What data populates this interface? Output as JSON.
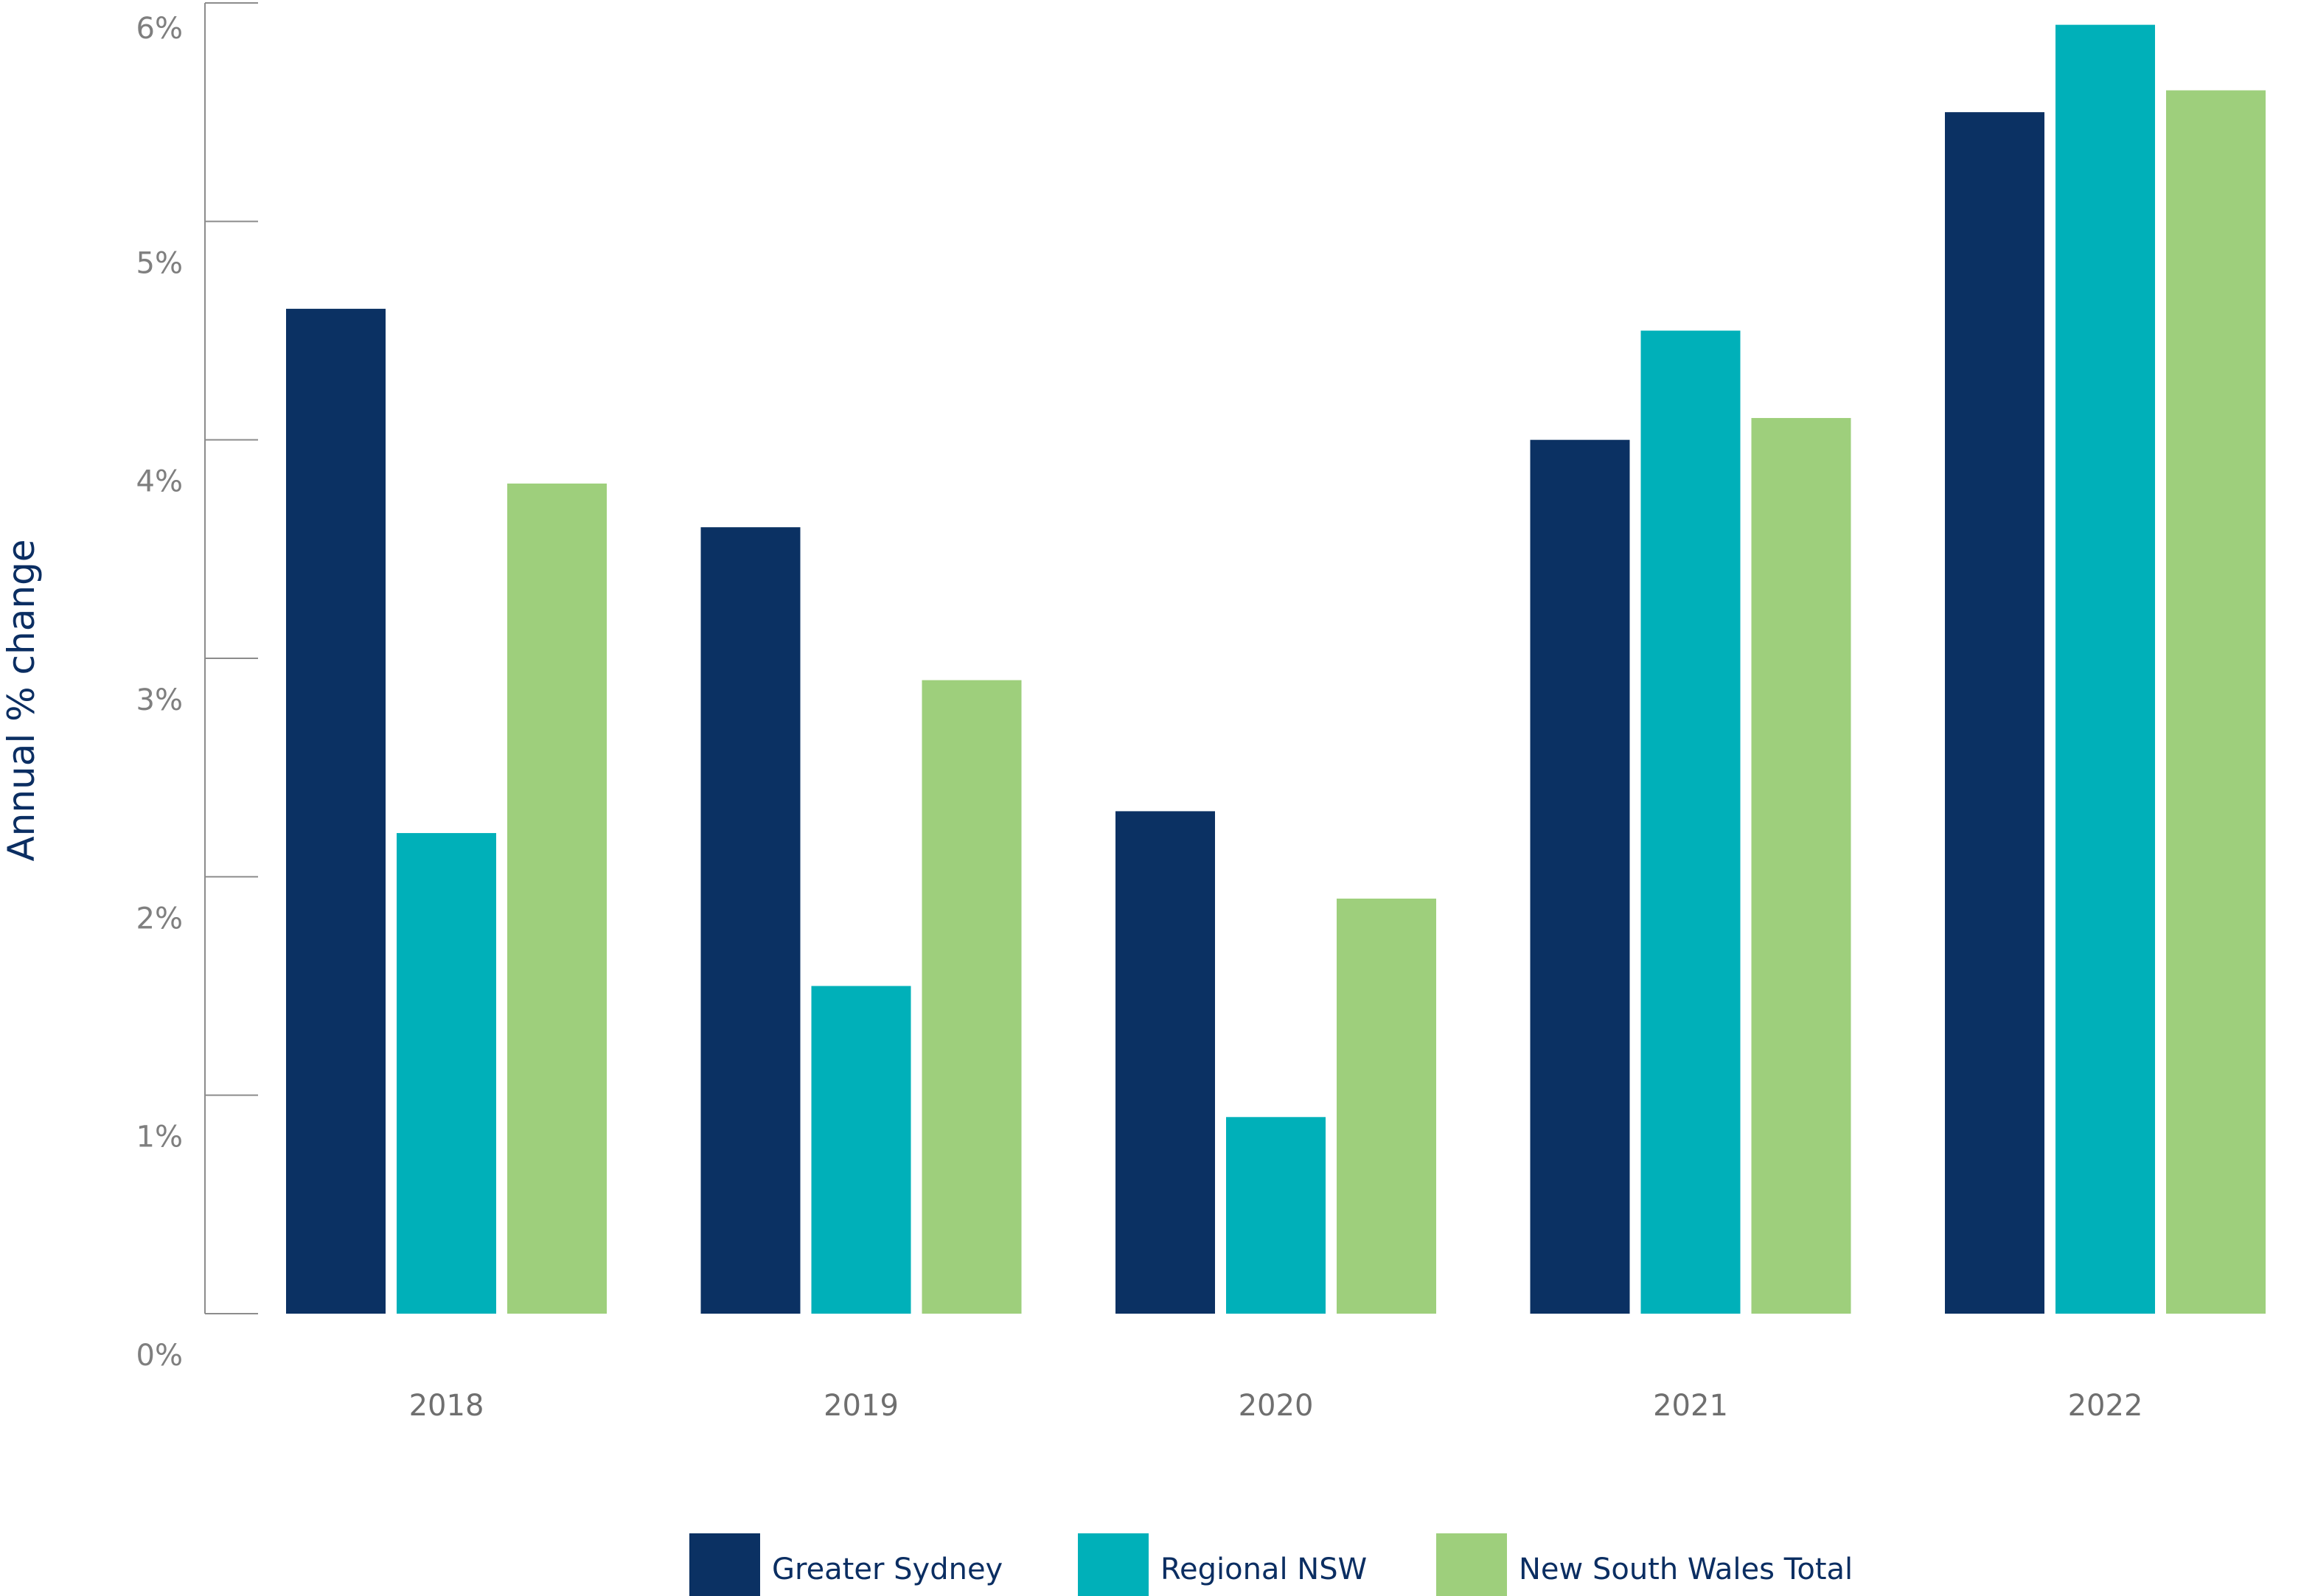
{
  "chart_data": {
    "type": "bar",
    "ylabel": "Annual % change",
    "xlabel": "",
    "categories": [
      "2018",
      "2019",
      "2020",
      "2021",
      "2022"
    ],
    "ylim": [
      0,
      6
    ],
    "yticks": [
      0,
      1,
      2,
      3,
      4,
      5,
      6
    ],
    "ytick_labels": [
      "0%",
      "1%",
      "2%",
      "3%",
      "4%",
      "5%",
      "6%"
    ],
    "series": [
      {
        "name": "Greater Sydney",
        "color": "#0b3163",
        "values": [
          4.6,
          3.6,
          2.3,
          4.0,
          5.5
        ]
      },
      {
        "name": "Regional NSW",
        "color": "#00b0b9",
        "values": [
          2.2,
          1.5,
          0.9,
          4.5,
          5.9
        ]
      },
      {
        "name": "New South Wales Total",
        "color": "#9ecf7c",
        "values": [
          3.8,
          2.9,
          1.9,
          4.1,
          5.6
        ]
      }
    ],
    "legend_position": "bottom",
    "grid": false
  }
}
